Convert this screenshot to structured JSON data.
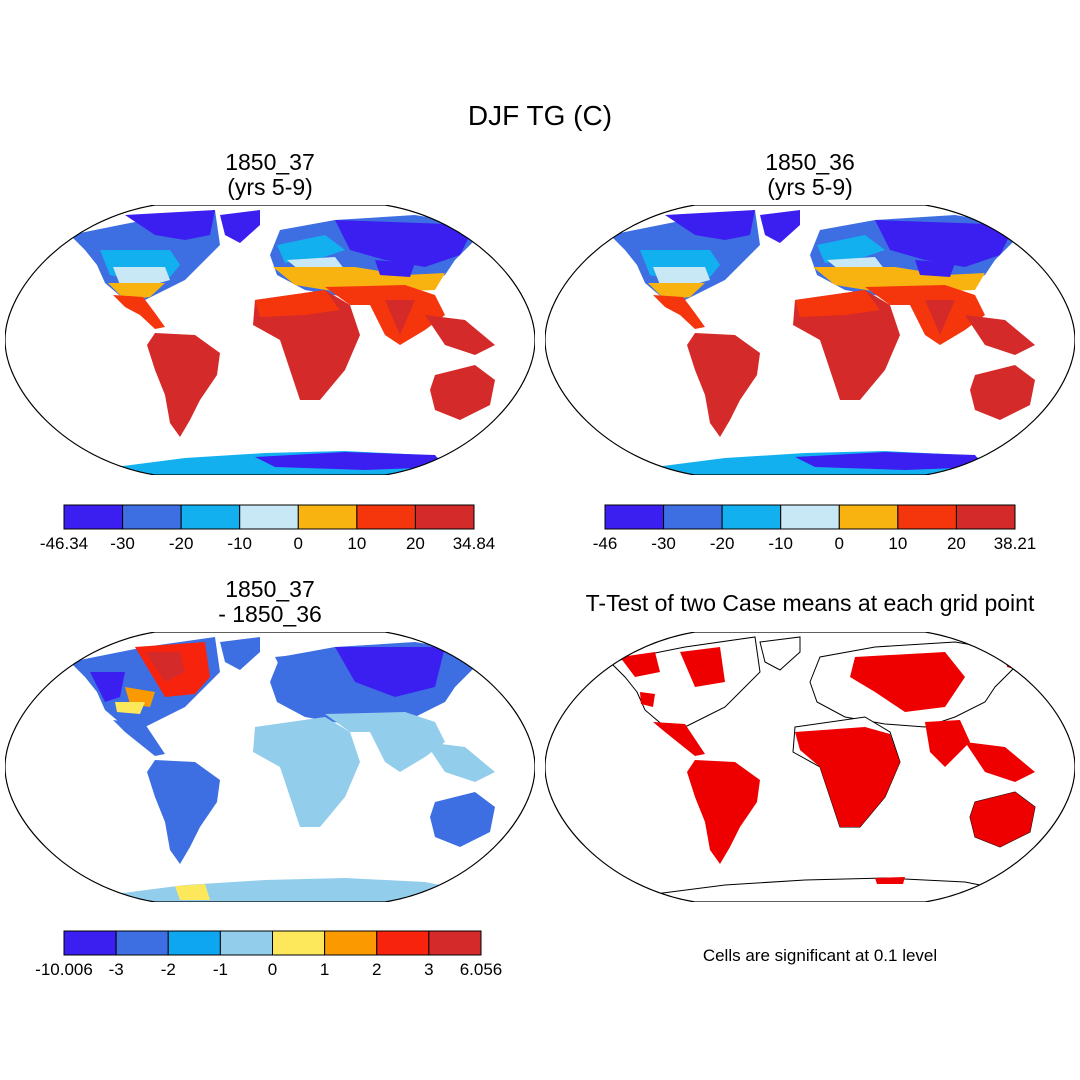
{
  "figure": {
    "title": "DJF TG (C)",
    "note": "Cells are significant at 0.1 level"
  },
  "panels": [
    {
      "id": "case1",
      "title_line1": "1850_37",
      "title_line2": "(yrs 5-9)",
      "colorbar": {
        "colors": [
          "#3b1ff0",
          "#3d6fe3",
          "#13b0f0",
          "#c9e8f5",
          "#f9b310",
          "#f5360d",
          "#d42a2a"
        ],
        "labels": [
          "-46.34",
          "-30",
          "-20",
          "-10",
          "0",
          "10",
          "20",
          "34.84"
        ]
      }
    },
    {
      "id": "case2",
      "title_line1": "1850_36",
      "title_line2": "(yrs 5-9)",
      "colorbar": {
        "colors": [
          "#3b1ff0",
          "#3d6fe3",
          "#13b0f0",
          "#c9e8f5",
          "#f9b310",
          "#f5360d",
          "#d42a2a"
        ],
        "labels": [
          "-46",
          "-30",
          "-20",
          "-10",
          "0",
          "10",
          "20",
          "38.21"
        ]
      }
    },
    {
      "id": "difference",
      "title_line1": "1850_37",
      "title_line2": "- 1850_36",
      "colorbar": {
        "colors": [
          "#3b1ff0",
          "#3d6fe3",
          "#0ea6f0",
          "#92cdec",
          "#fde85c",
          "#fb9a00",
          "#f8230d",
          "#d42a2a"
        ],
        "labels": [
          "-10.006",
          "-3",
          "-2",
          "-1",
          "0",
          "1",
          "2",
          "3",
          "6.056"
        ]
      }
    },
    {
      "id": "ttest",
      "title_line1": "T-Test of two Case means at each grid point",
      "significant_color": "#ee0000"
    }
  ]
}
